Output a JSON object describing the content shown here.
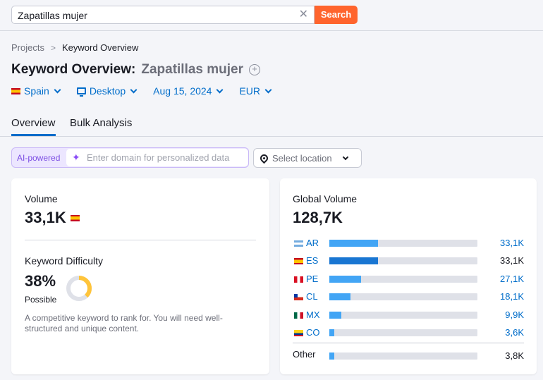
{
  "search": {
    "value": "Zapatillas mujer",
    "button_label": "Search"
  },
  "breadcrumb": {
    "projects": "Projects",
    "current": "Keyword Overview"
  },
  "title": {
    "prefix": "Keyword Overview:",
    "keyword": "Zapatillas mujer"
  },
  "filters": {
    "country": "Spain",
    "device": "Desktop",
    "date": "Aug 15, 2024",
    "currency": "EUR"
  },
  "tabs": [
    "Overview",
    "Bulk Analysis"
  ],
  "ai": {
    "badge": "AI-powered",
    "placeholder": "Enter domain for personalized data"
  },
  "location": {
    "placeholder": "Select location"
  },
  "volume": {
    "label": "Volume",
    "value": "33,1K"
  },
  "kd": {
    "label": "Keyword Difficulty",
    "value": "38%",
    "percent": 38,
    "sub": "Possible",
    "description": "A competitive keyword to rank for. You will need well-structured and unique content.",
    "color": "#ffc43a"
  },
  "global": {
    "label": "Global Volume",
    "value": "128,7K",
    "rows": [
      {
        "code": "AR",
        "value": "33,1K",
        "share": 0.33,
        "selected": false,
        "link": true
      },
      {
        "code": "ES",
        "value": "33,1K",
        "share": 0.33,
        "selected": true,
        "link": false
      },
      {
        "code": "PE",
        "value": "27,1K",
        "share": 0.215,
        "selected": false,
        "link": true
      },
      {
        "code": "CL",
        "value": "18,1K",
        "share": 0.145,
        "selected": false,
        "link": true
      },
      {
        "code": "MX",
        "value": "9,9K",
        "share": 0.08,
        "selected": false,
        "link": true
      },
      {
        "code": "CO",
        "value": "3,6K",
        "share": 0.035,
        "selected": false,
        "link": true
      }
    ],
    "other": {
      "label": "Other",
      "value": "3,8K",
      "share": 0.035
    }
  },
  "colors": {
    "accent": "#006dca",
    "search_button": "#ff642d",
    "bar": "#42a5f5",
    "bar_selected": "#1976d2"
  }
}
